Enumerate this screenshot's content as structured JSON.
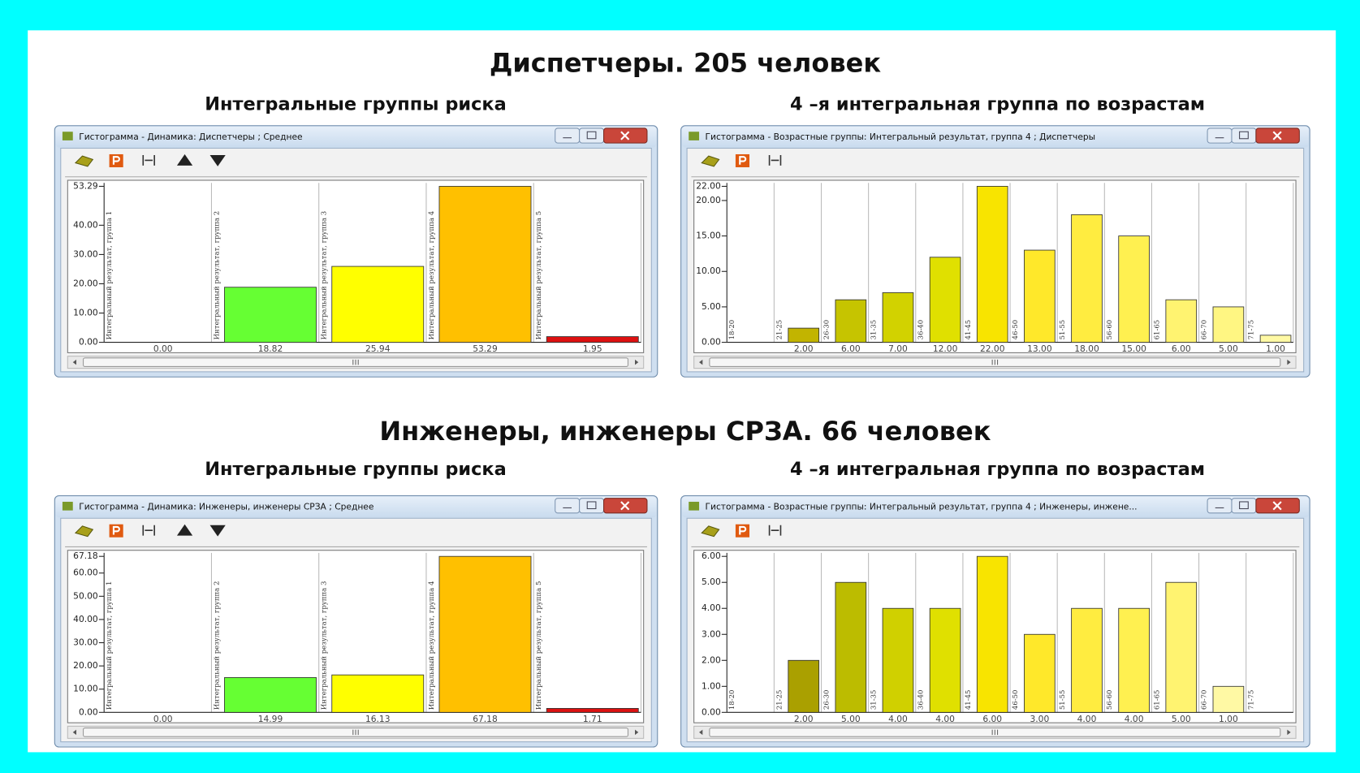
{
  "headings": [
    "Диспетчеры. 205 человек",
    "Инженеры, инженеры СРЗА. 66 человек"
  ],
  "chart_data": [
    {
      "type": "bar",
      "title": "Интегральные группы риска",
      "window_title": "Гистограмма - Динамика: Диспетчеры ; Среднее",
      "categories": [
        "Интегральный результат, группа 1",
        "Интегральный результат, группа 2",
        "Интегральный результат, группа 3",
        "Интегральный результат, группа 4",
        "Интегральный результат, группа 5"
      ],
      "values": [
        0,
        18.82,
        25.94,
        53.29,
        1.95
      ],
      "value_labels": [
        "0.00",
        "18.82",
        "25.94",
        "53.29",
        "1.95"
      ],
      "colors": [
        "#66ff33",
        "#66ff33",
        "#ffff00",
        "#ffc000",
        "#dd1111"
      ],
      "ylim": [
        0,
        53.29
      ],
      "yticks": [
        {
          "value": 0,
          "label": "0.00"
        },
        {
          "value": 10,
          "label": "10.00"
        },
        {
          "value": 20,
          "label": "20.00"
        },
        {
          "value": 30,
          "label": "30.00"
        },
        {
          "value": 40,
          "label": "40.00"
        },
        {
          "value": 53.29,
          "label": "53.29"
        }
      ]
    },
    {
      "type": "bar",
      "title": "4 –я интегральная группа по возрастам",
      "window_title": "Гистограмма - Возрастные группы: Интегральный результат, группа 4 ; Диспетчеры",
      "categories": [
        "18-20",
        "21-25",
        "26-30",
        "31-35",
        "36-40",
        "41-45",
        "46-50",
        "51-55",
        "56-60",
        "61-65",
        "66-70",
        "71-75"
      ],
      "values": [
        null,
        2,
        6,
        7,
        12,
        22,
        13,
        18,
        15,
        6,
        5,
        1
      ],
      "value_labels": [
        null,
        "2.00",
        "6.00",
        "7.00",
        "12.00",
        "22.00",
        "13.00",
        "18.00",
        "15.00",
        "6.00",
        "5.00",
        "1.00"
      ],
      "colors": [
        null,
        "#c2b400",
        "#c6c400",
        "#d2d200",
        "#e0e000",
        "#f8e400",
        "#ffe82a",
        "#ffec40",
        "#fff050",
        "#fff370",
        "#fff682",
        "#fff9a4"
      ],
      "ylim": [
        0,
        22
      ],
      "yticks": [
        {
          "value": 0,
          "label": "0.00"
        },
        {
          "value": 5,
          "label": "5.00"
        },
        {
          "value": 10,
          "label": "10.00"
        },
        {
          "value": 15,
          "label": "15.00"
        },
        {
          "value": 20,
          "label": "20.00"
        },
        {
          "value": 22,
          "label": "22.00"
        }
      ]
    },
    {
      "type": "bar",
      "title": "Интегральные группы риска",
      "window_title": "Гистограмма - Динамика: Инженеры, инженеры СРЗА ; Среднее",
      "categories": [
        "Интегральный результат, группа 1",
        "Интегральный результат, группа 2",
        "Интегральный результат, группа 3",
        "Интегральный результат, группа 4",
        "Интегральный результат, группа 5"
      ],
      "values": [
        0,
        14.99,
        16.13,
        67.18,
        1.71
      ],
      "value_labels": [
        "0.00",
        "14.99",
        "16.13",
        "67.18",
        "1.71"
      ],
      "colors": [
        "#66ff33",
        "#66ff33",
        "#ffff00",
        "#ffc000",
        "#dd1111"
      ],
      "ylim": [
        0,
        67.18
      ],
      "yticks": [
        {
          "value": 0,
          "label": "0.00"
        },
        {
          "value": 10,
          "label": "10.00"
        },
        {
          "value": 20,
          "label": "20.00"
        },
        {
          "value": 30,
          "label": "30.00"
        },
        {
          "value": 40,
          "label": "40.00"
        },
        {
          "value": 50,
          "label": "50.00"
        },
        {
          "value": 60,
          "label": "60.00"
        },
        {
          "value": 67.18,
          "label": "67.18"
        }
      ]
    },
    {
      "type": "bar",
      "title": "4 –я интегральная группа по возрастам",
      "window_title": "Гистограмма - Возрастные группы: Интегральный результат, группа 4 ; Инженеры, инжене...",
      "categories": [
        "18-20",
        "21-25",
        "26-30",
        "31-35",
        "36-40",
        "41-45",
        "46-50",
        "51-55",
        "56-60",
        "61-65",
        "66-70",
        "71-75"
      ],
      "values": [
        null,
        2,
        5,
        4,
        4,
        6,
        3,
        4,
        4,
        5,
        1,
        null
      ],
      "value_labels": [
        null,
        "2.00",
        "5.00",
        "4.00",
        "4.00",
        "6.00",
        "3.00",
        "4.00",
        "4.00",
        "5.00",
        "1.00",
        null
      ],
      "colors": [
        null,
        "#aaa000",
        "#bcbc00",
        "#d0d000",
        "#e0e000",
        "#f8e400",
        "#ffe82a",
        "#ffec40",
        "#fff050",
        "#fff370",
        "#fff9a4",
        null
      ],
      "ylim": [
        0,
        6
      ],
      "yticks": [
        {
          "value": 0,
          "label": "0.00"
        },
        {
          "value": 1,
          "label": "1.00"
        },
        {
          "value": 2,
          "label": "2.00"
        },
        {
          "value": 3,
          "label": "3.00"
        },
        {
          "value": 4,
          "label": "4.00"
        },
        {
          "value": 5,
          "label": "5.00"
        },
        {
          "value": 6,
          "label": "6.00"
        }
      ]
    }
  ]
}
